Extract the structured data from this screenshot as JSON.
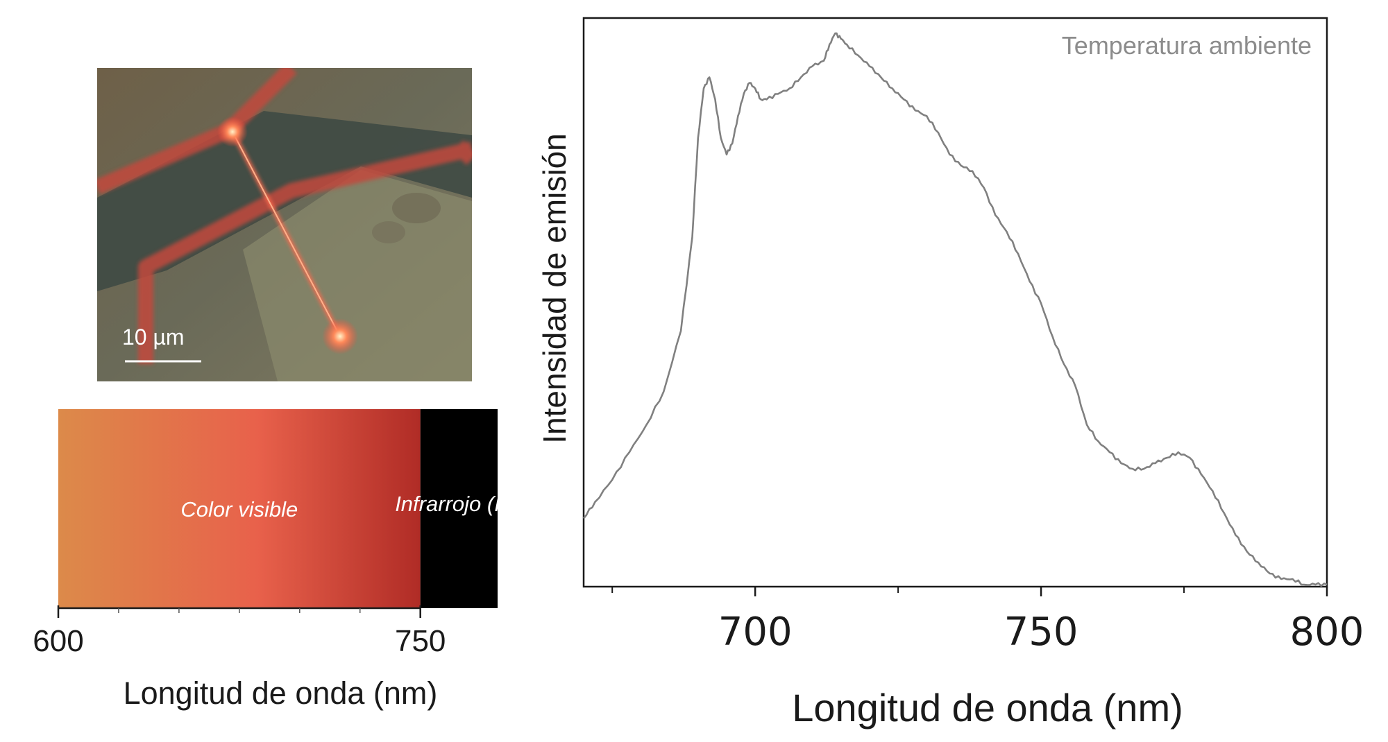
{
  "micrograph": {
    "scalebar_label": "10 µm"
  },
  "spectrum_bar": {
    "visible_label": "Color visible",
    "ir_label": "Infrarrojo (IR)",
    "ticks": [
      600,
      750
    ],
    "range": [
      600,
      782
    ],
    "split": 750,
    "xlabel": "Longitud de onda (nm)",
    "colors": {
      "visible_start": "#dc8a4a",
      "visible_mid": "#e8614b",
      "visible_end": "#b02c26",
      "ir": "#000000"
    }
  },
  "chart_data": {
    "type": "line",
    "annotation": "Temperatura ambiente",
    "xlabel": "Longitud de onda (nm)",
    "ylabel": "Intensidad de emisión",
    "xlim": [
      670,
      800
    ],
    "ylim": [
      0,
      1
    ],
    "xticks": [
      700,
      750,
      800
    ],
    "minor_xticks": [
      675,
      725,
      775
    ],
    "grid": false,
    "line_color": "#808080",
    "series": [
      {
        "x": [
          670,
          672,
          675,
          678,
          681,
          684,
          687,
          689,
          690,
          691,
          692,
          693,
          694,
          695,
          696,
          697,
          698,
          699,
          700,
          701,
          702,
          704,
          706,
          708,
          710,
          712,
          713,
          714,
          715,
          716,
          718,
          720,
          722,
          724,
          726,
          728,
          730,
          732,
          734,
          736,
          738,
          740,
          742,
          744,
          746,
          748,
          750,
          752,
          754,
          756,
          758,
          760,
          762,
          764,
          766,
          768,
          770,
          772,
          774,
          776,
          778,
          780,
          782,
          784,
          786,
          788,
          790,
          792,
          794,
          796,
          798,
          800
        ],
        "values": [
          0.11,
          0.14,
          0.18,
          0.23,
          0.28,
          0.34,
          0.45,
          0.62,
          0.8,
          0.89,
          0.91,
          0.87,
          0.8,
          0.77,
          0.79,
          0.84,
          0.88,
          0.9,
          0.89,
          0.87,
          0.87,
          0.88,
          0.89,
          0.91,
          0.93,
          0.94,
          0.97,
          0.99,
          0.98,
          0.97,
          0.95,
          0.93,
          0.91,
          0.89,
          0.87,
          0.85,
          0.84,
          0.81,
          0.77,
          0.75,
          0.74,
          0.71,
          0.66,
          0.63,
          0.59,
          0.54,
          0.5,
          0.44,
          0.39,
          0.35,
          0.28,
          0.25,
          0.23,
          0.21,
          0.2,
          0.2,
          0.21,
          0.22,
          0.23,
          0.22,
          0.19,
          0.16,
          0.12,
          0.08,
          0.05,
          0.03,
          0.01,
          0.0,
          0.0,
          -0.01,
          -0.01,
          -0.01
        ]
      }
    ]
  }
}
